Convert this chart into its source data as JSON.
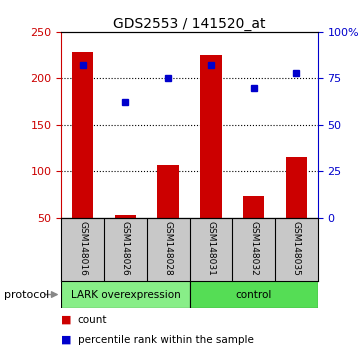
{
  "title": "GDS2553 / 141520_at",
  "samples": [
    "GSM148016",
    "GSM148026",
    "GSM148028",
    "GSM148031",
    "GSM148032",
    "GSM148035"
  ],
  "counts": [
    228,
    53,
    107,
    225,
    73,
    115
  ],
  "percentile_ranks": [
    82,
    62,
    75,
    82,
    70,
    78
  ],
  "ylim_left": [
    50,
    250
  ],
  "ylim_right": [
    0,
    100
  ],
  "yticks_left": [
    50,
    100,
    150,
    200,
    250
  ],
  "yticks_right": [
    0,
    25,
    50,
    75,
    100
  ],
  "ytick_labels_right": [
    "0",
    "25",
    "50",
    "75",
    "100%"
  ],
  "bar_color": "#cc0000",
  "dot_color": "#0000cc",
  "bar_bottom": 50,
  "group1_label": "LARK overexpression",
  "group2_label": "control",
  "group1_color": "#88ee88",
  "group2_color": "#55dd55",
  "protocol_label": "protocol",
  "background_color": "#ffffff",
  "sample_bg_color": "#c8c8c8",
  "left_tick_color": "#cc0000",
  "right_tick_color": "#0000cc",
  "legend_count_label": "count",
  "legend_pct_label": "percentile rank within the sample"
}
